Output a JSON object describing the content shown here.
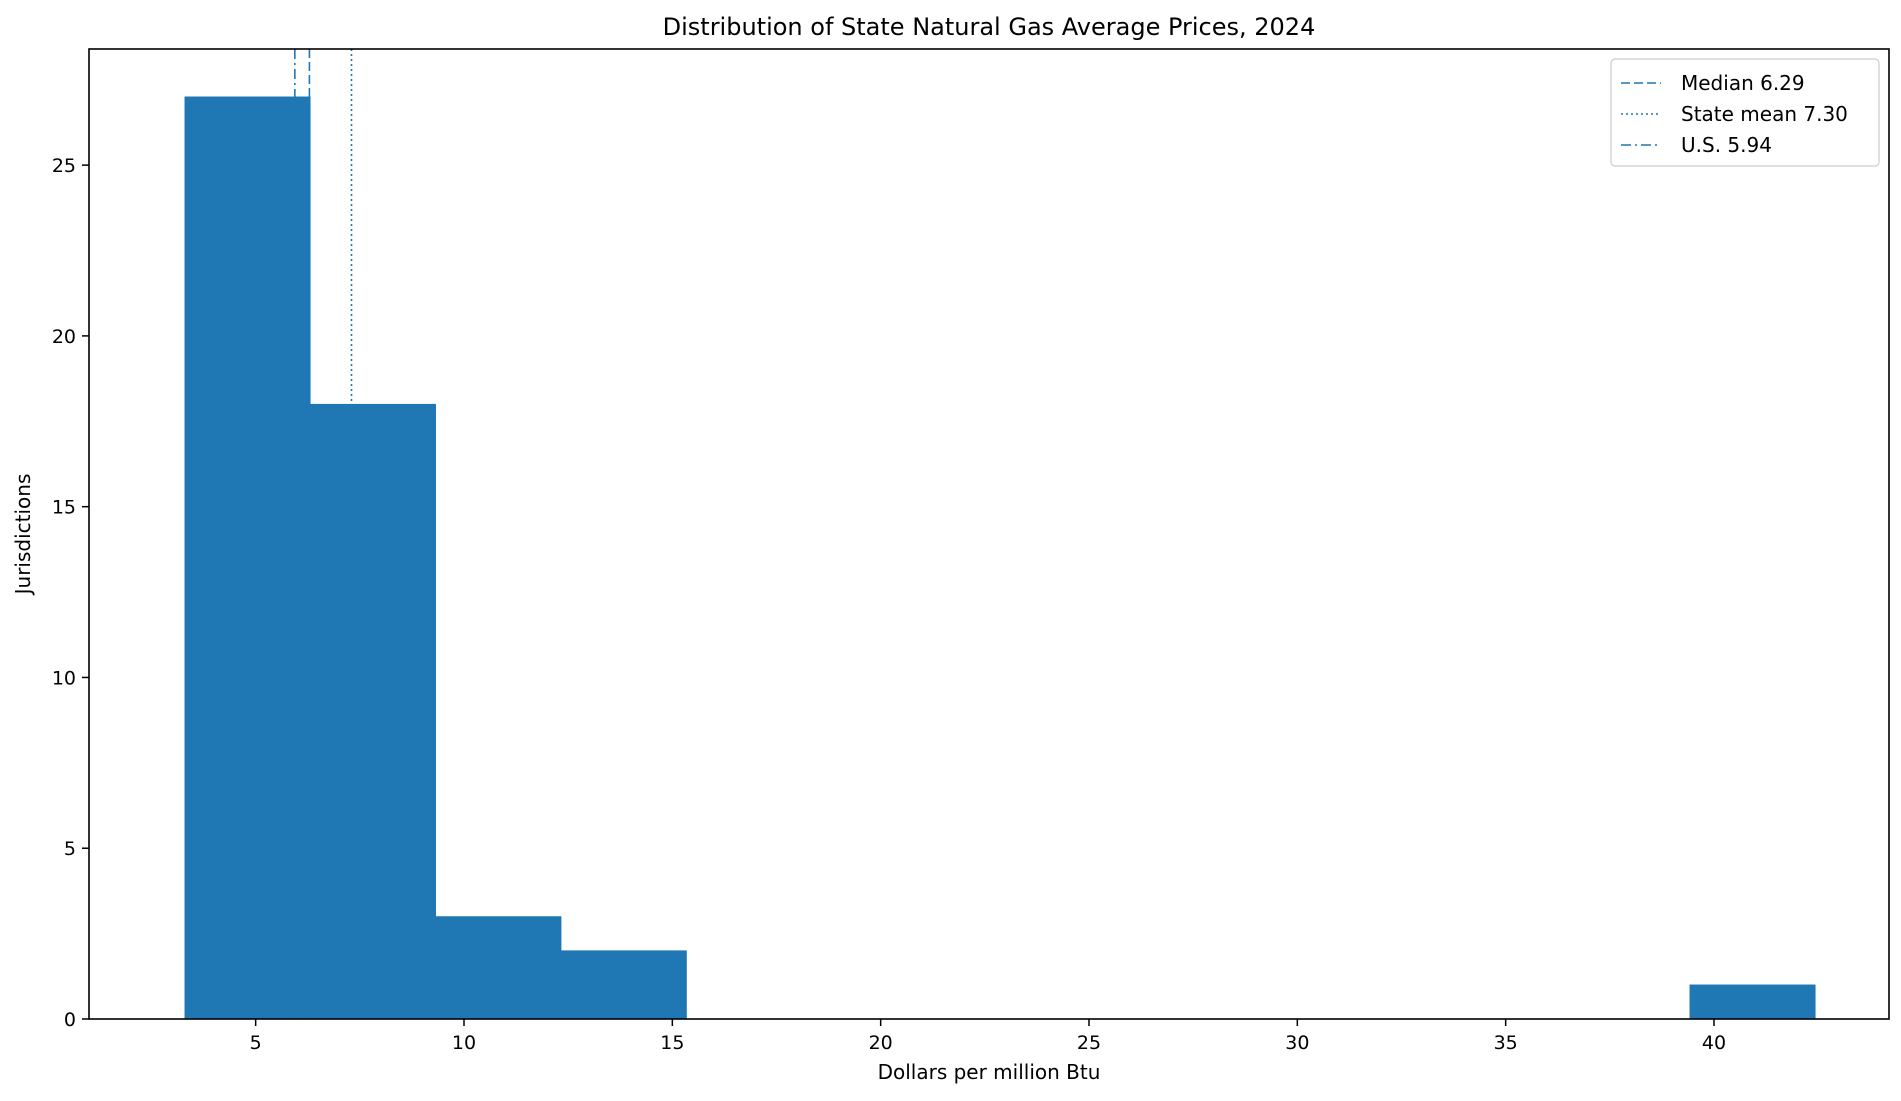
{
  "chart_data": {
    "type": "bar",
    "subtype": "histogram",
    "title": "Distribution of State Natural Gas Average Prices, 2024",
    "xlabel": "Dollars per million Btu",
    "ylabel": "Jurisdictions",
    "xlim": [
      1.0,
      44.2
    ],
    "ylim": [
      0,
      28.4
    ],
    "xticks": [
      5,
      10,
      15,
      20,
      25,
      30,
      35,
      40
    ],
    "yticks": [
      0,
      5,
      10,
      15,
      20,
      25
    ],
    "grid": false,
    "legend_position": "top-right",
    "bar_color": "#1f77b4",
    "bins": [
      {
        "start": 3.3,
        "end": 6.31,
        "count": 27
      },
      {
        "start": 6.31,
        "end": 9.32,
        "count": 18
      },
      {
        "start": 9.32,
        "end": 12.33,
        "count": 3
      },
      {
        "start": 12.33,
        "end": 15.34,
        "count": 2
      },
      {
        "start": 15.34,
        "end": 18.35,
        "count": 0
      },
      {
        "start": 18.35,
        "end": 21.36,
        "count": 0
      },
      {
        "start": 21.36,
        "end": 24.37,
        "count": 0
      },
      {
        "start": 24.37,
        "end": 27.38,
        "count": 0
      },
      {
        "start": 27.38,
        "end": 30.39,
        "count": 0
      },
      {
        "start": 30.39,
        "end": 33.4,
        "count": 0
      },
      {
        "start": 33.4,
        "end": 36.41,
        "count": 0
      },
      {
        "start": 36.41,
        "end": 39.42,
        "count": 0
      },
      {
        "start": 39.42,
        "end": 42.43,
        "count": 1
      }
    ],
    "reference_lines": [
      {
        "label": "Median 6.29",
        "value": 6.29,
        "style": "dashed",
        "color": "#1f77b4"
      },
      {
        "label": "State mean 7.30",
        "value": 7.3,
        "style": "dotted",
        "color": "#1f77b4"
      },
      {
        "label": "U.S. 5.94",
        "value": 5.94,
        "style": "dashdot",
        "color": "#1f77b4"
      }
    ]
  }
}
